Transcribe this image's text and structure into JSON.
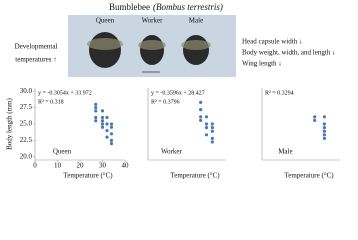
{
  "header": {
    "title": "Bumblebee",
    "species": "(Bombus terrestris)",
    "castes": [
      "Queen",
      "Worker",
      "Male"
    ],
    "left_note": [
      "Developmental",
      "temperatures ↑"
    ],
    "right_note": [
      "Head capsule width ↓",
      "Body weight, width, and length ↓",
      "Wing length ↓"
    ]
  },
  "chart_data": [
    {
      "type": "scatter",
      "ylabel": "Body length (mm)",
      "xlabel": "Temperature (°C)",
      "annotations": [
        "y = -0.3054x + 33.972",
        "R² = 0.318",
        "Queen"
      ],
      "x": [
        27,
        27,
        27,
        27,
        27,
        30,
        30,
        30,
        30,
        30,
        32,
        32,
        32,
        32,
        34,
        34,
        34,
        34,
        34
      ],
      "y": [
        26,
        27,
        28,
        25.5,
        27.5,
        25,
        26,
        24.5,
        27,
        25.5,
        24,
        25,
        23,
        26,
        22.5,
        23.5,
        24.5,
        25,
        22
      ],
      "color": "#4a7ab5",
      "xlim": [
        0,
        40
      ],
      "xticks": [
        0,
        10,
        20,
        30,
        40
      ],
      "ylim": [
        19.5,
        30.5
      ],
      "yticks": [
        {
          "value": 20,
          "label": "20.0"
        },
        22.5,
        {
          "value": 25,
          "label": "25.0"
        },
        27.5,
        {
          "value": 30,
          "label": "30.0"
        }
      ]
    },
    {
      "type": "scatter",
      "xlabel": "Temperature (°C)",
      "annotations": [
        "y = -0.3596x + 28.427",
        "R² = 0.3796",
        "Worker"
      ],
      "x": [
        27,
        27,
        27,
        27,
        30,
        30,
        30,
        30,
        33,
        33,
        33,
        33,
        33
      ],
      "y": [
        19,
        20,
        18,
        17.5,
        17,
        18,
        16.5,
        15.5,
        16,
        15,
        17,
        14.5,
        16.5
      ],
      "color": "#4a7ab5",
      "xlim": [
        0,
        40
      ],
      "ylim": [
        12,
        22
      ]
    },
    {
      "type": "scatter",
      "xlabel": "Temperature (°C)",
      "annotations": [
        "R² = 0.3294",
        "Male"
      ],
      "x": [
        27,
        27,
        32,
        32,
        32,
        32,
        32,
        32
      ],
      "y": [
        18,
        17.5,
        17,
        16,
        15.5,
        18,
        16.5,
        15
      ],
      "color": "#4a7ab5",
      "xlim": [
        0,
        40
      ],
      "ylim": [
        12,
        22
      ]
    }
  ]
}
